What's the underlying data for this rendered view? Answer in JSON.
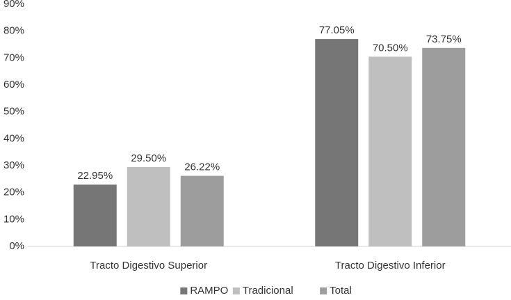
{
  "chart_data": {
    "type": "bar",
    "categories": [
      "Tracto Digestivo Superior",
      "Tracto Digestivo Inferior"
    ],
    "series": [
      {
        "name": "RAMPO",
        "color": "#767676",
        "values": [
          22.95,
          77.05
        ],
        "value_labels": [
          "22.95%",
          "77.05%"
        ]
      },
      {
        "name": "Tradicional",
        "color": "#bfbfbf",
        "values": [
          29.5,
          70.5
        ],
        "value_labels": [
          "29.50%",
          "70.50%"
        ]
      },
      {
        "name": "Total",
        "color": "#9d9d9e",
        "values": [
          26.22,
          73.75
        ],
        "value_labels": [
          "26.22%",
          "73.75%"
        ]
      }
    ],
    "ylim": [
      0,
      90
    ],
    "yticks": [
      {
        "value": 0,
        "label": "0%"
      },
      {
        "value": 10,
        "label": "10%"
      },
      {
        "value": 20,
        "label": "20%"
      },
      {
        "value": 30,
        "label": "30%"
      },
      {
        "value": 40,
        "label": "40%"
      },
      {
        "value": 50,
        "label": "50%"
      },
      {
        "value": 60,
        "label": "60%"
      },
      {
        "value": 70,
        "label": "70%"
      },
      {
        "value": 80,
        "label": "80%"
      },
      {
        "value": 90,
        "label": "90%"
      }
    ],
    "grid": false,
    "legend": "bottom"
  }
}
